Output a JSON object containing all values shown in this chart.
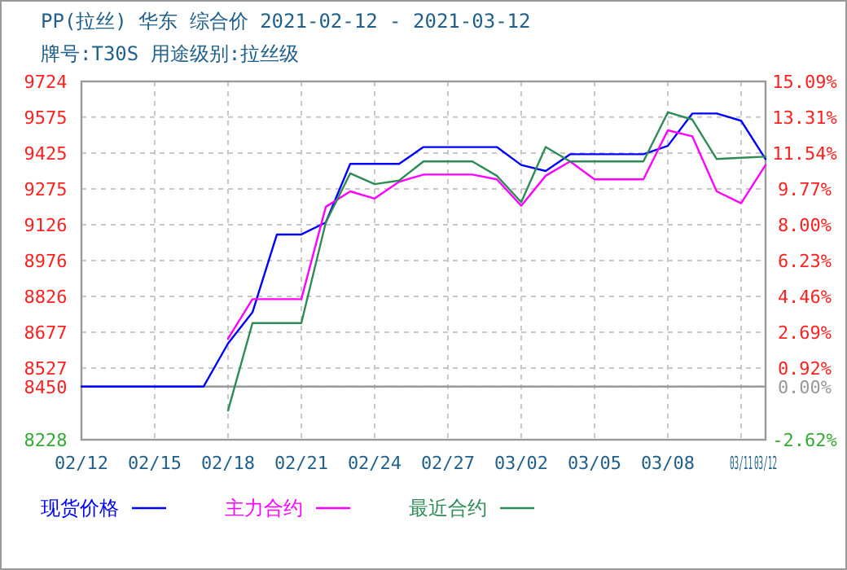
{
  "chart_data": {
    "type": "line",
    "title": "PP(拉丝) 华东 综合价 2021-02-12 - 2021-03-12",
    "subtitle": "牌号:T30S 用途级别:拉丝级",
    "x": [
      "2021-02-12",
      "2021-02-13",
      "2021-02-14",
      "2021-02-15",
      "2021-02-16",
      "2021-02-17",
      "2021-02-18",
      "2021-02-19",
      "2021-02-20",
      "2021-02-21",
      "2021-02-22",
      "2021-02-23",
      "2021-02-24",
      "2021-02-25",
      "2021-02-26",
      "2021-02-27",
      "2021-02-28",
      "2021-03-01",
      "2021-03-02",
      "2021-03-03",
      "2021-03-04",
      "2021-03-05",
      "2021-03-06",
      "2021-03-07",
      "2021-03-08",
      "2021-03-09",
      "2021-03-10",
      "2021-03-11",
      "2021-03-12"
    ],
    "series": [
      {
        "name": "现货价格",
        "color": "#0000ff",
        "values": [
          8450,
          8450,
          8450,
          8450,
          8450,
          8450,
          8630,
          8760,
          9085,
          9085,
          9135,
          9380,
          9380,
          9380,
          9450,
          9450,
          9450,
          9450,
          9375,
          9350,
          9420,
          9420,
          9420,
          9420,
          9455,
          9590,
          9590,
          9560,
          9400
        ]
      },
      {
        "name": "主力合约",
        "color": "#ff00ff",
        "values": [
          null,
          null,
          null,
          null,
          null,
          null,
          8650,
          8815,
          8815,
          8815,
          9200,
          9265,
          9235,
          9305,
          9335,
          9335,
          9335,
          9315,
          9205,
          9330,
          9390,
          9315,
          9315,
          9315,
          9520,
          9495,
          9265,
          9215,
          9375
        ]
      },
      {
        "name": "最近合约",
        "color": "#2e8b57",
        "values": [
          null,
          null,
          null,
          null,
          null,
          null,
          8350,
          8715,
          8715,
          8715,
          9135,
          9340,
          9295,
          9310,
          9390,
          9390,
          9390,
          9330,
          9220,
          9450,
          9390,
          9390,
          9390,
          9390,
          9595,
          9565,
          9400,
          9405,
          9410
        ]
      }
    ],
    "xlim": [
      "2021-02-12",
      "2021-03-12"
    ],
    "xticks": [
      {
        "value": "2021-02-12",
        "label": "02/12"
      },
      {
        "value": "2021-02-15",
        "label": "02/15"
      },
      {
        "value": "2021-02-18",
        "label": "02/18"
      },
      {
        "value": "2021-02-21",
        "label": "02/21"
      },
      {
        "value": "2021-02-24",
        "label": "02/24"
      },
      {
        "value": "2021-02-27",
        "label": "02/27"
      },
      {
        "value": "2021-03-02",
        "label": "03/02"
      },
      {
        "value": "2021-03-05",
        "label": "03/05"
      },
      {
        "value": "2021-03-08",
        "label": "03/08"
      },
      {
        "value": "2021-03-11",
        "label": "03/11"
      },
      {
        "value": "2021-03-12",
        "label": "03/12"
      }
    ],
    "ylim": [
      8228,
      9724
    ],
    "yticks": [
      8228,
      8450,
      8527,
      8677,
      8826,
      8976,
      9126,
      9275,
      9425,
      9575,
      9724
    ],
    "y2lim": [
      -2.62,
      15.09
    ],
    "y2ticks": [
      {
        "value": -2.62,
        "label": "-2.62%"
      },
      {
        "value": 0,
        "label": "0.00%"
      },
      {
        "value": 0.92,
        "label": "0.92%"
      },
      {
        "value": 2.69,
        "label": "2.69%"
      },
      {
        "value": 4.46,
        "label": "4.46%"
      },
      {
        "value": 6.23,
        "label": "6.23%"
      },
      {
        "value": 8.0,
        "label": "8.00%"
      },
      {
        "value": 9.77,
        "label": "9.77%"
      },
      {
        "value": 11.54,
        "label": "11.54%"
      },
      {
        "value": 13.31,
        "label": "13.31%"
      },
      {
        "value": 15.09,
        "label": "15.09%"
      }
    ],
    "ref_lines": [
      {
        "axis": "y",
        "value": 8450,
        "color": "#999999"
      }
    ],
    "grid": true,
    "legend": "bottom",
    "line_style": "solid",
    "marker": "none"
  }
}
